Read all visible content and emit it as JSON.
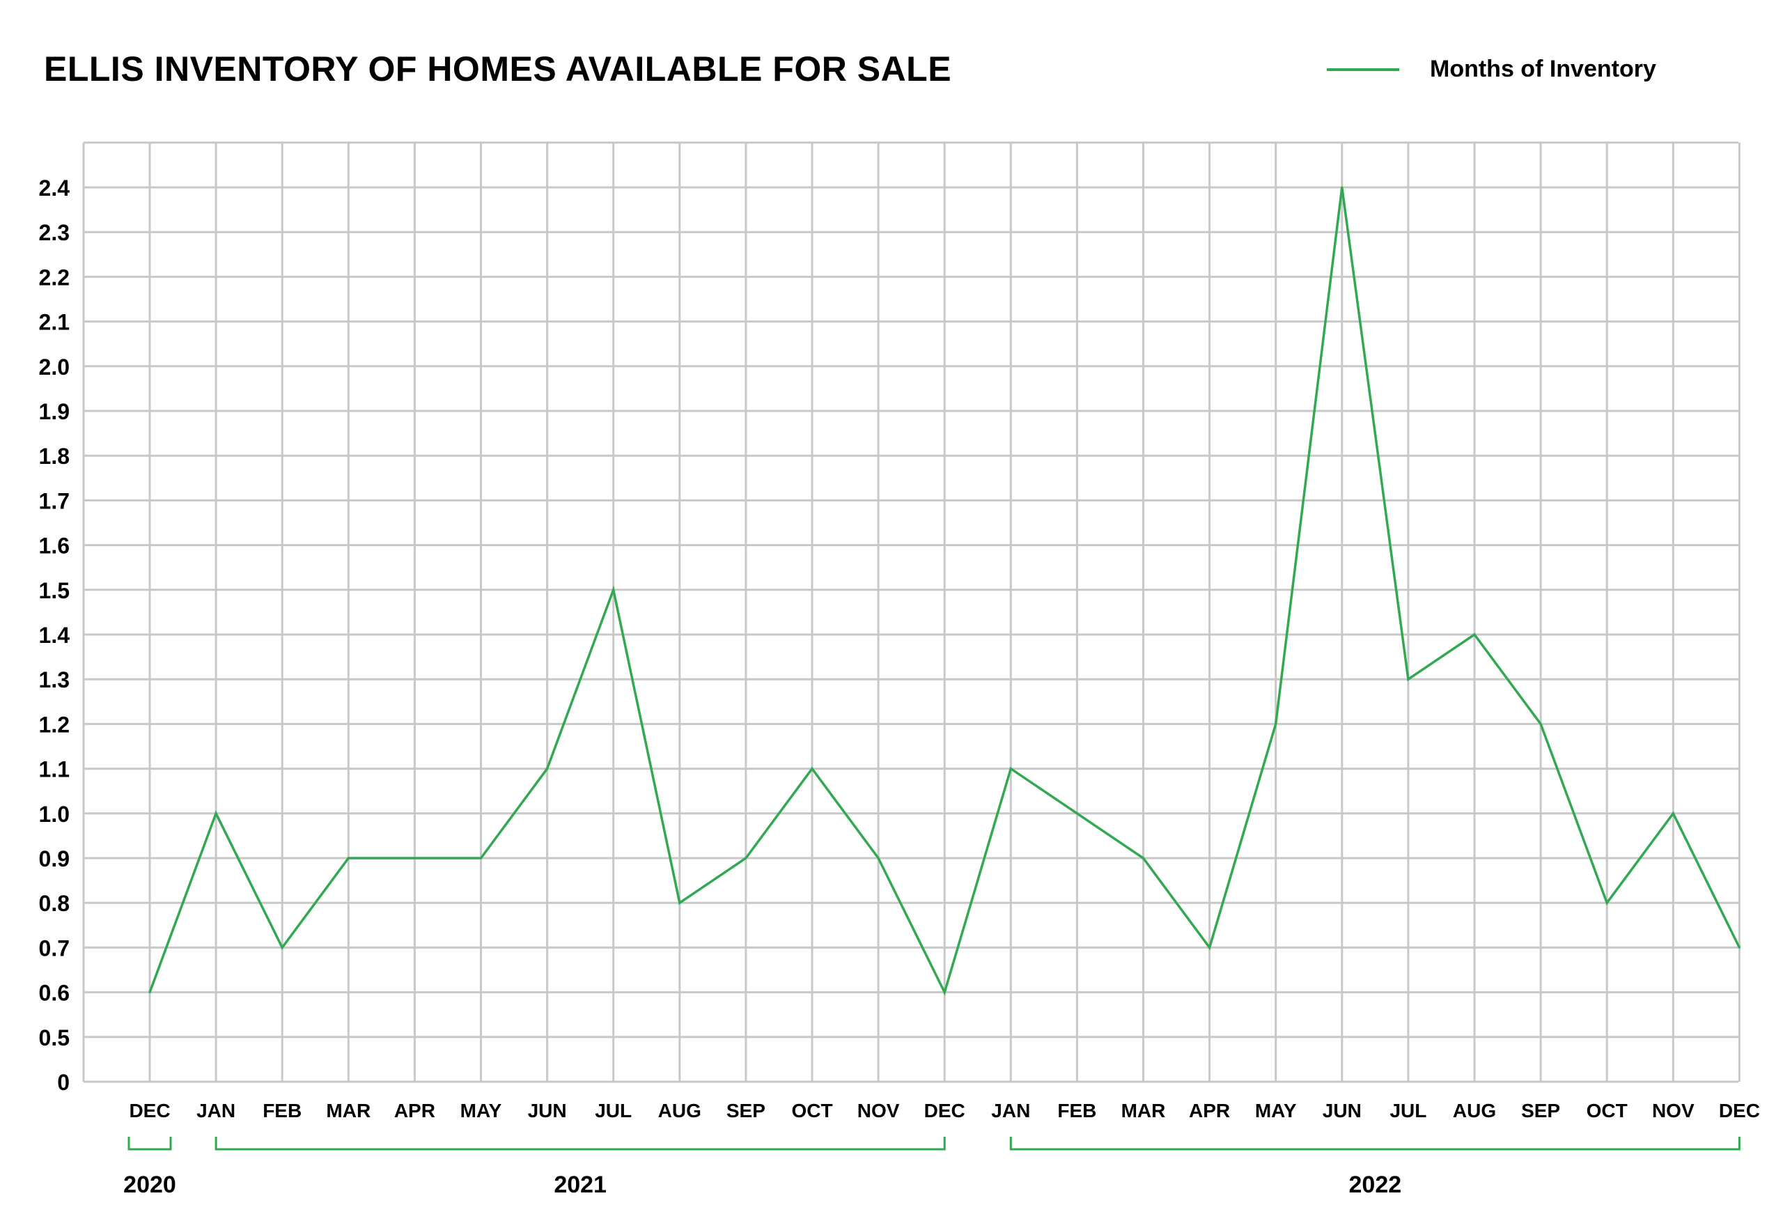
{
  "title": "ELLIS INVENTORY OF HOMES AVAILABLE FOR SALE",
  "legend": {
    "label": "Months of Inventory",
    "color": "#33a852"
  },
  "colors": {
    "line": "#33a852",
    "grid": "#c8c8c8",
    "text": "#000000"
  },
  "chart_data": {
    "type": "line",
    "title": "ELLIS INVENTORY OF HOMES AVAILABLE FOR SALE",
    "xlabel": "",
    "ylabel": "",
    "categories": [
      "DEC",
      "JAN",
      "FEB",
      "MAR",
      "APR",
      "MAY",
      "JUN",
      "JUL",
      "AUG",
      "SEP",
      "OCT",
      "NOV",
      "DEC",
      "JAN",
      "FEB",
      "MAR",
      "APR",
      "MAY",
      "JUN",
      "JUL",
      "AUG",
      "SEP",
      "OCT",
      "NOV",
      "DEC"
    ],
    "series": [
      {
        "name": "Months of Inventory",
        "values": [
          0.6,
          1.0,
          0.7,
          0.9,
          0.9,
          0.9,
          1.1,
          1.5,
          0.8,
          0.9,
          1.1,
          0.9,
          0.6,
          1.1,
          1.0,
          0.9,
          0.7,
          1.2,
          2.4,
          1.3,
          1.4,
          1.2,
          0.8,
          1.0,
          0.7
        ]
      }
    ],
    "y_tick_labels": [
      "0",
      "0.5",
      "0.6",
      "0.7",
      "0.8",
      "0.9",
      "1.0",
      "1.1",
      "1.2",
      "1.3",
      "1.4",
      "1.5",
      "1.6",
      "1.7",
      "1.8",
      "1.9",
      "2.0",
      "2.1",
      "2.2",
      "2.3",
      "2.4"
    ],
    "year_groups": [
      {
        "label": "2020",
        "start": 0,
        "end": 0
      },
      {
        "label": "2021",
        "start": 1,
        "end": 12
      },
      {
        "label": "2022",
        "start": 13,
        "end": 24
      }
    ],
    "grid": true,
    "legend_position": "top-right"
  }
}
